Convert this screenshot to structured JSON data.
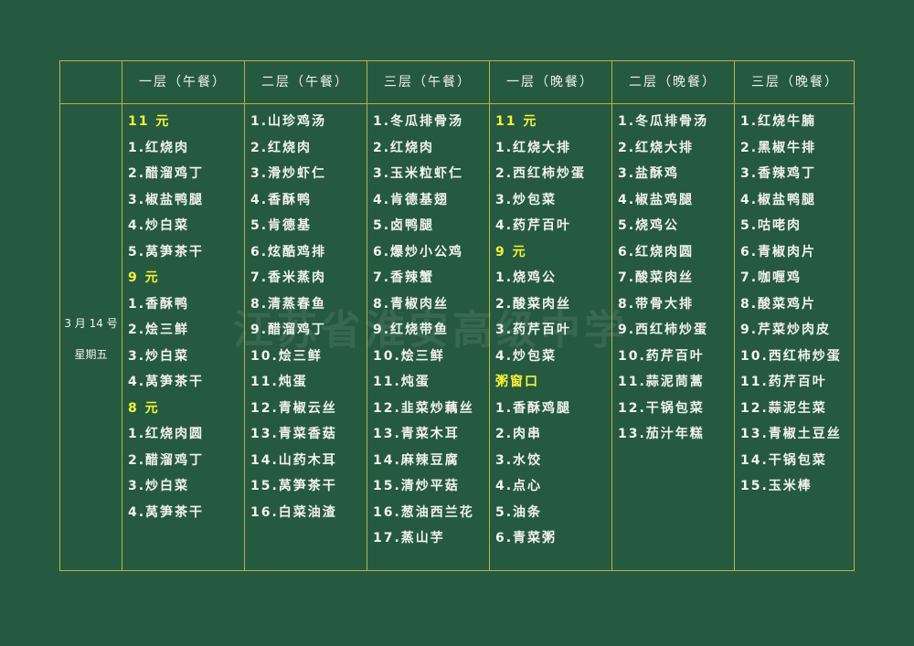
{
  "watermark": "江苏省淮安高级中学",
  "date": "3 月 14 号",
  "weekday": "星期五",
  "columns": [
    {
      "header": "一层（午餐）",
      "items": [
        {
          "t": "11 元",
          "h": true
        },
        {
          "t": "1.红烧肉"
        },
        {
          "t": "2.醋溜鸡丁"
        },
        {
          "t": "3.椒盐鸭腿"
        },
        {
          "t": "4.炒白菜"
        },
        {
          "t": "5.莴笋茶干"
        },
        {
          "t": "9 元",
          "h": true
        },
        {
          "t": "1.香酥鸭"
        },
        {
          "t": "2.烩三鲜"
        },
        {
          "t": "3.炒白菜"
        },
        {
          "t": "4.莴笋茶干"
        },
        {
          "t": "8 元",
          "h": true
        },
        {
          "t": "1.红烧肉圆"
        },
        {
          "t": "2.醋溜鸡丁"
        },
        {
          "t": "3.炒白菜"
        },
        {
          "t": "4.莴笋茶干"
        }
      ]
    },
    {
      "header": "二层（午餐）",
      "items": [
        {
          "t": "1.山珍鸡汤"
        },
        {
          "t": "2.红烧肉"
        },
        {
          "t": "3.滑炒虾仁"
        },
        {
          "t": "4.香酥鸭"
        },
        {
          "t": "5.肯德基"
        },
        {
          "t": "6.炫酷鸡排"
        },
        {
          "t": "7.香米蒸肉"
        },
        {
          "t": "8.清蒸春鱼"
        },
        {
          "t": "9.醋溜鸡丁"
        },
        {
          "t": "10.烩三鲜"
        },
        {
          "t": "11.炖蛋"
        },
        {
          "t": "12.青椒云丝"
        },
        {
          "t": "13.青菜香菇"
        },
        {
          "t": "14.山药木耳"
        },
        {
          "t": "15.莴笋茶干"
        },
        {
          "t": "16.白菜油渣"
        }
      ]
    },
    {
      "header": "三层（午餐）",
      "items": [
        {
          "t": "1.冬瓜排骨汤"
        },
        {
          "t": "2.红烧肉"
        },
        {
          "t": "3.玉米粒虾仁"
        },
        {
          "t": "4.肯德基翅"
        },
        {
          "t": "5.卤鸭腿"
        },
        {
          "t": "6.爆炒小公鸡"
        },
        {
          "t": "7.香辣蟹"
        },
        {
          "t": "8.青椒肉丝"
        },
        {
          "t": "9.红烧带鱼"
        },
        {
          "t": "10.烩三鲜"
        },
        {
          "t": "11.炖蛋"
        },
        {
          "t": "12.韭菜炒藕丝"
        },
        {
          "t": "13.青菜木耳"
        },
        {
          "t": "14.麻辣豆腐"
        },
        {
          "t": "15.清炒平菇"
        },
        {
          "t": "16.葱油西兰花"
        },
        {
          "t": "17.蒸山芋"
        }
      ]
    },
    {
      "header": "一层（晚餐）",
      "items": [
        {
          "t": "11 元",
          "h": true
        },
        {
          "t": "1.红烧大排"
        },
        {
          "t": "2.西红柿炒蛋"
        },
        {
          "t": "3.炒包菜"
        },
        {
          "t": "4.药芹百叶"
        },
        {
          "t": "9 元",
          "h": true
        },
        {
          "t": "1.烧鸡公"
        },
        {
          "t": "2.酸菜肉丝"
        },
        {
          "t": "3.药芹百叶"
        },
        {
          "t": "4.炒包菜"
        },
        {
          "t": "粥窗口",
          "h": true
        },
        {
          "t": "1.香酥鸡腿"
        },
        {
          "t": "2.肉串"
        },
        {
          "t": "3.水饺"
        },
        {
          "t": "4.点心"
        },
        {
          "t": "5.油条"
        },
        {
          "t": "6.青菜粥"
        }
      ]
    },
    {
      "header": "二层（晚餐）",
      "items": [
        {
          "t": "1.冬瓜排骨汤"
        },
        {
          "t": "2.红烧大排"
        },
        {
          "t": "3.盐酥鸡"
        },
        {
          "t": "4.椒盐鸡腿"
        },
        {
          "t": "5.烧鸡公"
        },
        {
          "t": "6.红烧肉圆"
        },
        {
          "t": "7.酸菜肉丝"
        },
        {
          "t": "8.带骨大排"
        },
        {
          "t": "9.西红柿炒蛋"
        },
        {
          "t": "10.药芹百叶"
        },
        {
          "t": "11.蒜泥茼蒿"
        },
        {
          "t": "12.干锅包菜"
        },
        {
          "t": "13.茄汁年糕"
        }
      ]
    },
    {
      "header": "三层（晚餐）",
      "items": [
        {
          "t": "1.红烧牛腩"
        },
        {
          "t": "2.黑椒牛排"
        },
        {
          "t": "3.香辣鸡丁"
        },
        {
          "t": "4.椒盐鸭腿"
        },
        {
          "t": "5.咕咾肉"
        },
        {
          "t": "6.青椒肉片"
        },
        {
          "t": "7.咖喱鸡"
        },
        {
          "t": "8.酸菜鸡片"
        },
        {
          "t": "9.芹菜炒肉皮"
        },
        {
          "t": "10.西红柿炒蛋"
        },
        {
          "t": "11.药芹百叶"
        },
        {
          "t": "12.蒜泥生菜"
        },
        {
          "t": "13.青椒土豆丝"
        },
        {
          "t": "14.干锅包菜"
        },
        {
          "t": "15.玉米棒"
        }
      ]
    }
  ]
}
